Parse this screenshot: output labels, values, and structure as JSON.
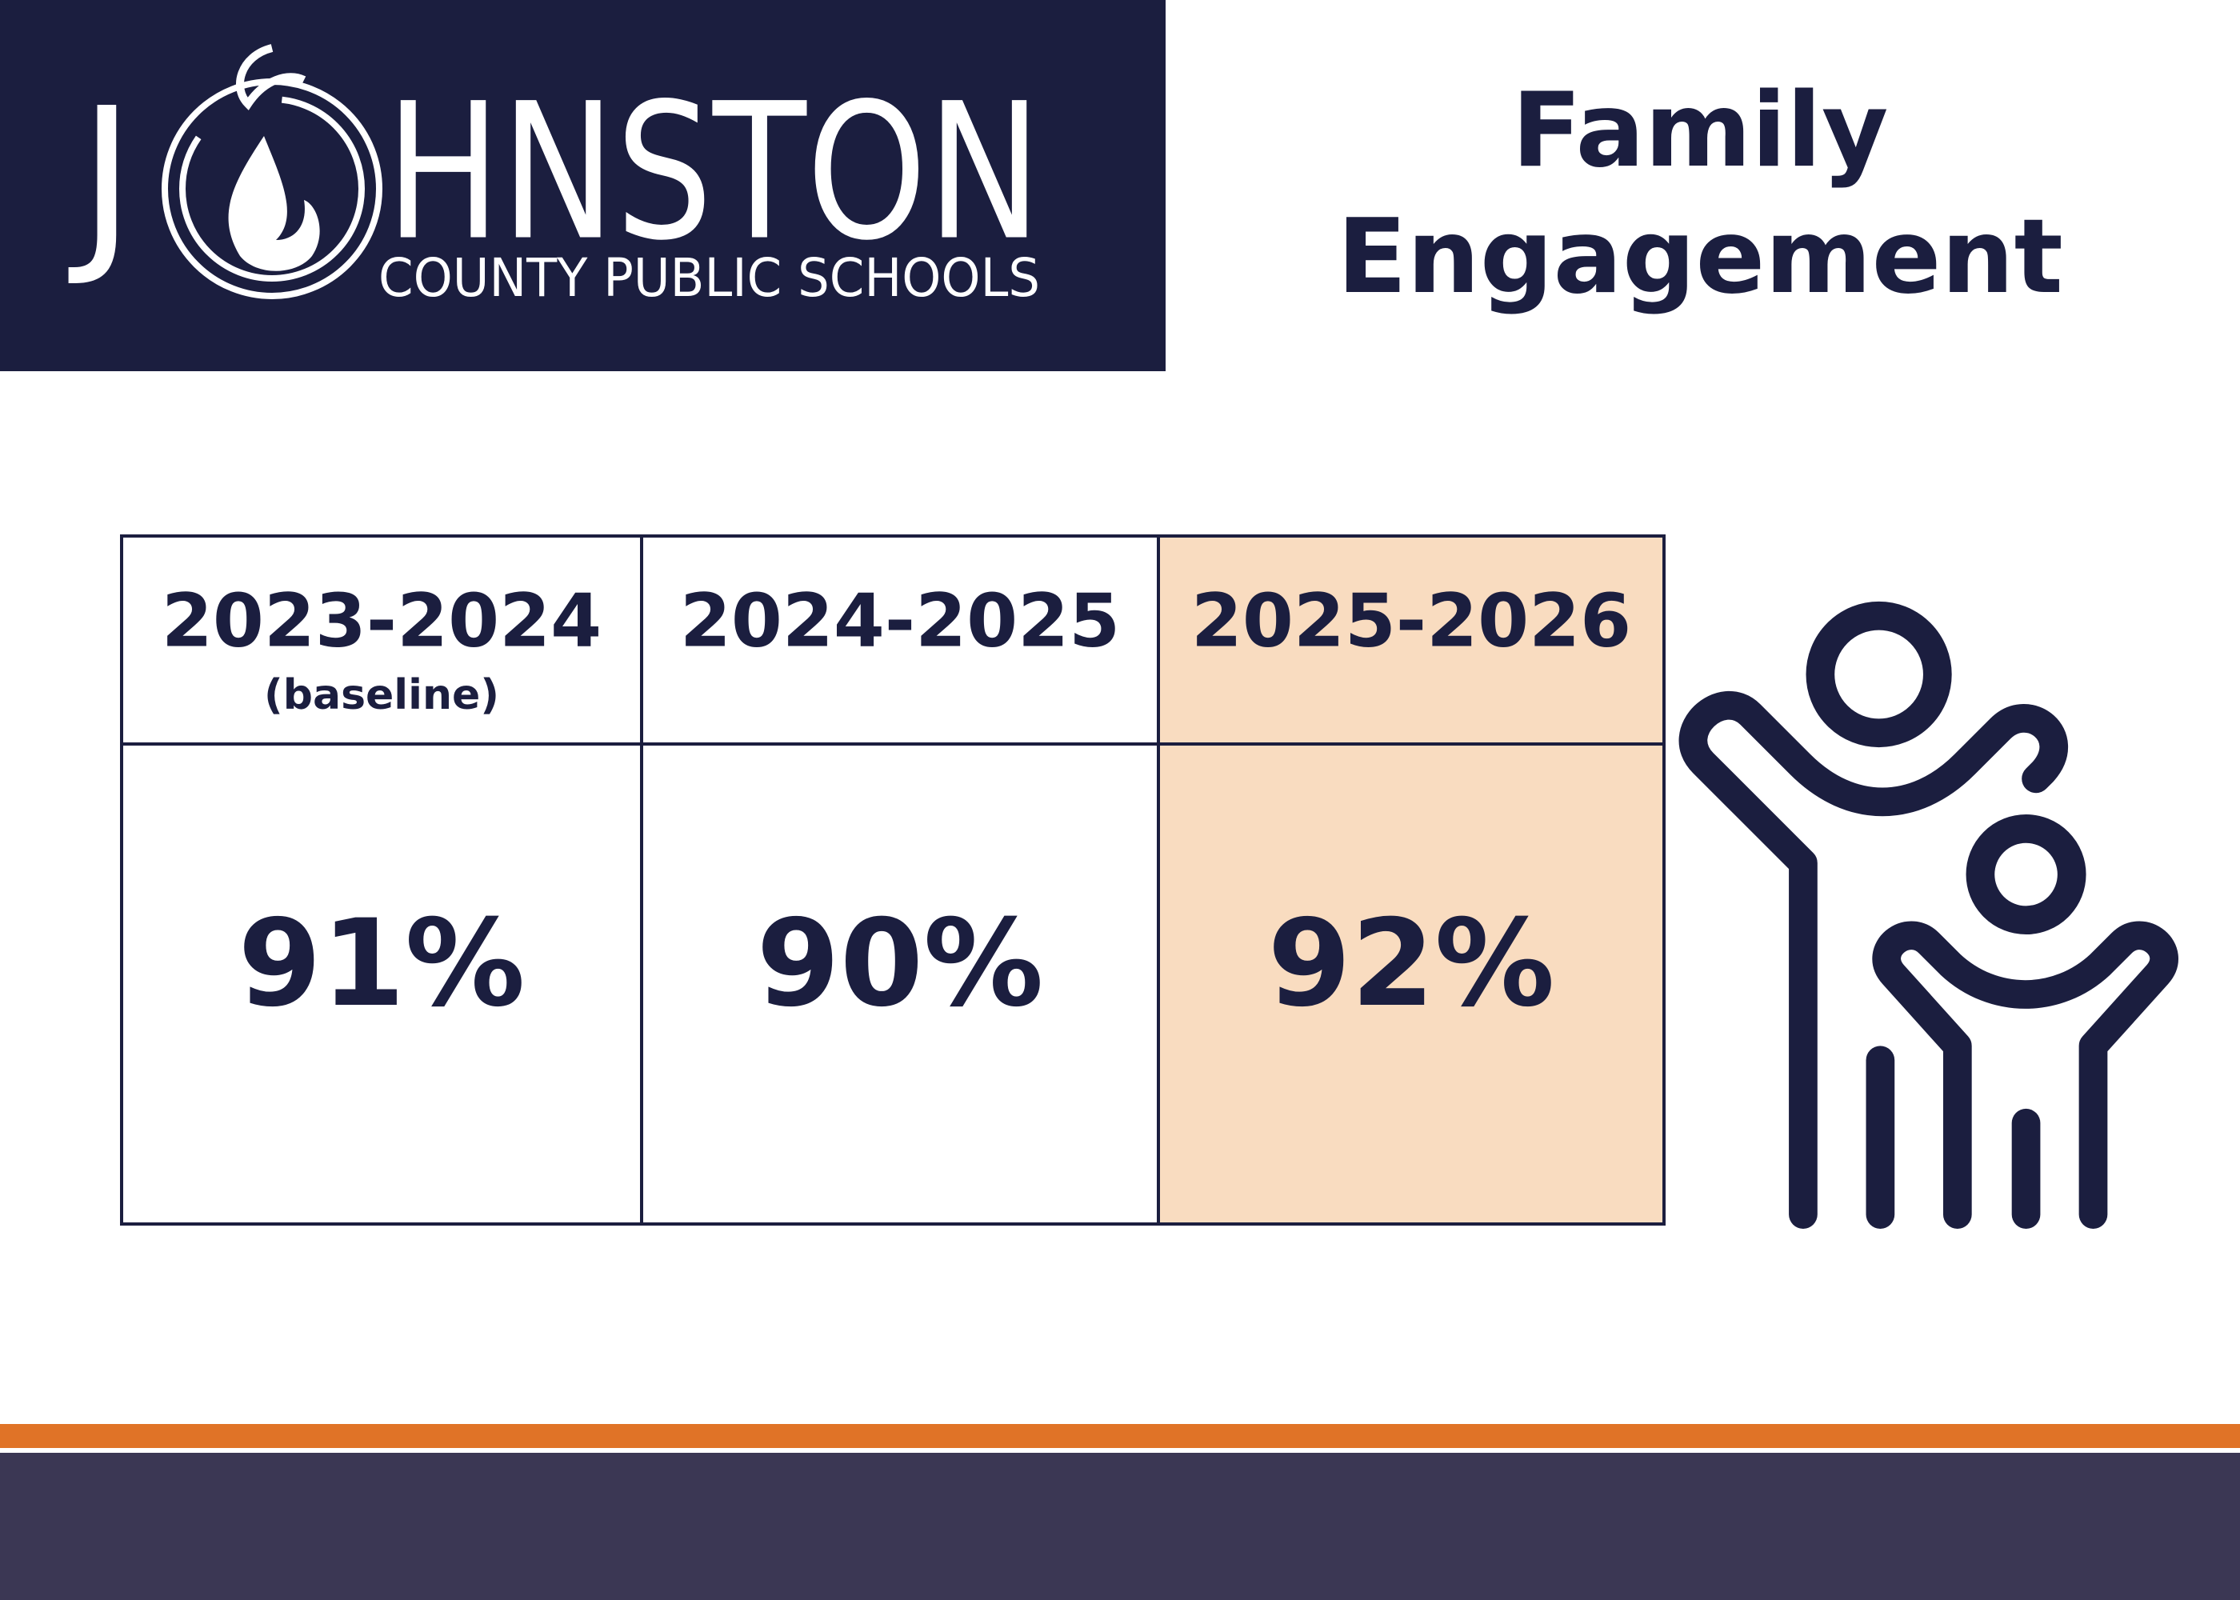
{
  "logo": {
    "letter": "J",
    "word": "HNSTON",
    "subtitle": "COUNTY PUBLIC SCHOOLS"
  },
  "title": [
    "Family",
    "Engagement"
  ],
  "table": {
    "headers": [
      [
        "2023-2024",
        "(baseline)"
      ],
      [
        "2024-2025"
      ],
      [
        "2025-2026"
      ]
    ],
    "rows": [
      [
        "91%",
        "90%",
        "92%"
      ]
    ]
  }
}
